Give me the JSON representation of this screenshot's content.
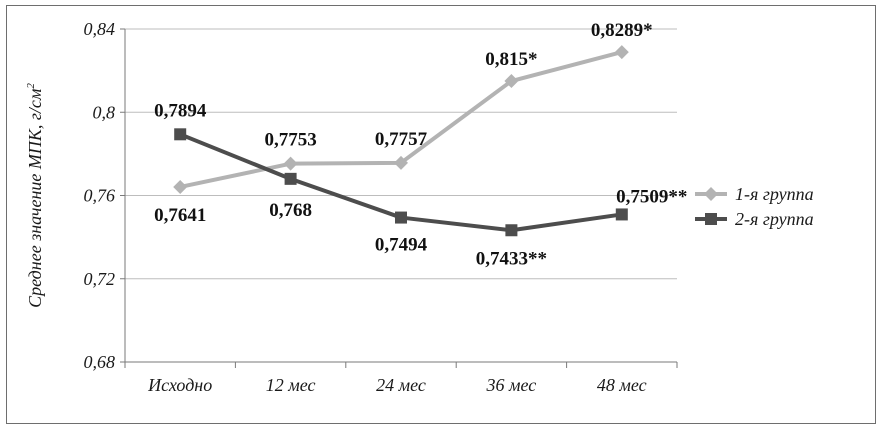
{
  "chart_data": {
    "type": "line",
    "categories": [
      "Исходно",
      "12 мес",
      "24 мес",
      "36 мес",
      "48 мес"
    ],
    "ylabel": "Среднее значение МПК, г/см",
    "ylabel_sup": "2",
    "ylim": [
      0.68,
      0.84
    ],
    "yticks": [
      "0,68",
      "0,72",
      "0,76",
      "0,8",
      "0,84"
    ],
    "ytick_values": [
      0.68,
      0.72,
      0.76,
      0.8,
      0.84
    ],
    "grid": true,
    "legend_position": "right",
    "series": [
      {
        "name": "1-я группа",
        "color": "#b3b3b3",
        "marker": "diamond",
        "values": [
          0.7641,
          0.7753,
          0.7757,
          0.815,
          0.8289
        ],
        "labels": [
          "0,7641",
          "0,7753",
          "0,7757",
          "0,815*",
          "0,8289*"
        ]
      },
      {
        "name": "2-я группа",
        "color": "#4d4d4d",
        "marker": "square",
        "values": [
          0.7894,
          0.768,
          0.7494,
          0.7433,
          0.7509
        ],
        "labels": [
          "0,7894",
          "0,768",
          "0,7494",
          "0,7433**",
          "0,7509**"
        ]
      }
    ]
  }
}
